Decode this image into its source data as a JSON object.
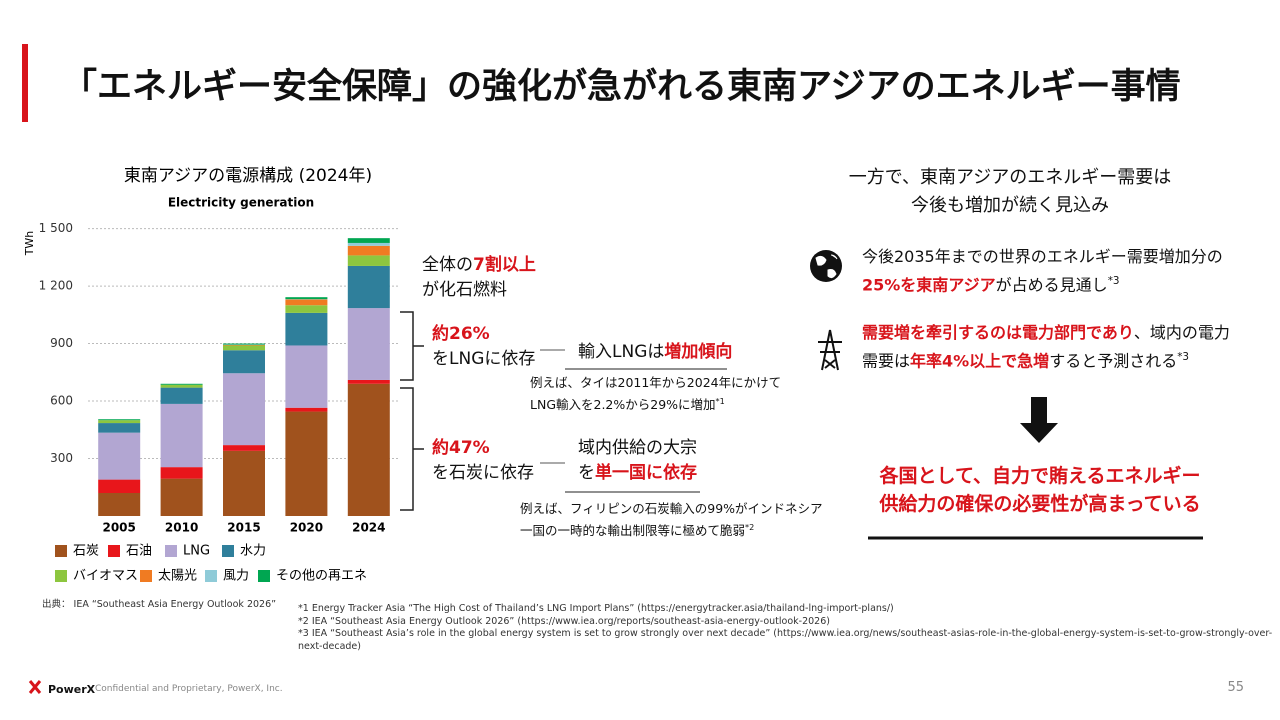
{
  "title": "「エネルギー安全保障」の強化が急がれる東南アジアのエネルギー事情",
  "chart_data": {
    "type": "stacked_bar",
    "title": "東南アジアの電源構成 (2024年)",
    "subtitle": "Electricity generation",
    "y_label": "TWh",
    "categories": [
      "2005",
      "2010",
      "2015",
      "2020",
      "2024"
    ],
    "series": [
      {
        "name": "石炭",
        "color": "#a0521d",
        "values": [
          120,
          195,
          340,
          545,
          690
        ]
      },
      {
        "name": "石油",
        "color": "#e8161b",
        "values": [
          70,
          60,
          30,
          20,
          20
        ]
      },
      {
        "name": "LNG",
        "color": "#b2a6d2",
        "values": [
          245,
          330,
          375,
          325,
          375
        ]
      },
      {
        "name": "水力",
        "color": "#2f7f9b",
        "values": [
          50,
          85,
          120,
          170,
          220
        ]
      },
      {
        "name": "バイオマス",
        "color": "#8dc63f",
        "values": [
          15,
          15,
          25,
          40,
          55
        ]
      },
      {
        "name": "太陽光",
        "color": "#f07b22",
        "values": [
          0,
          0,
          3,
          30,
          50
        ]
      },
      {
        "name": "風力",
        "color": "#8fcbd8",
        "values": [
          0,
          0,
          2,
          2,
          15
        ]
      },
      {
        "name": "その他の再エネ",
        "color": "#00a651",
        "values": [
          5,
          5,
          5,
          10,
          25
        ]
      }
    ],
    "ylim": [
      0,
      1550
    ],
    "yticks": [
      300,
      600,
      900,
      {
        "value": 1200,
        "label": "1 200"
      },
      {
        "value": 1500,
        "label": "1 500"
      }
    ],
    "grid": true
  },
  "annotations": {
    "fossil": [
      [
        {
          "text": "全体の"
        },
        {
          "text": "7割以上",
          "emphasis": true
        }
      ],
      [
        {
          "text": "が化石燃料"
        }
      ]
    ],
    "lng_share": [
      [
        {
          "text": "約26%",
          "emphasis": true
        }
      ],
      [
        {
          "text": "をLNGに依存"
        }
      ]
    ],
    "lng_heading": [
      [
        {
          "text": "輸入LNGは"
        },
        {
          "text": "増加傾向",
          "emphasis": true
        }
      ]
    ],
    "lng_note": [
      [
        {
          "text": "例えば、タイは2011年から2024年にかけて"
        }
      ],
      [
        {
          "text": "LNG輸入を2.2%から29%に増加"
        },
        {
          "text": "*1",
          "sup": true
        }
      ]
    ],
    "coal_share": [
      [
        {
          "text": "約47%",
          "emphasis": true
        }
      ],
      [
        {
          "text": "を石炭に依存"
        }
      ]
    ],
    "coal_heading": [
      [
        {
          "text": "域内供給の大宗"
        }
      ],
      [
        {
          "text": "を"
        },
        {
          "text": "単一国に依存",
          "emphasis": true
        }
      ]
    ],
    "coal_note": [
      [
        {
          "text": "例えば、フィリピンの石炭輸入の99%がインドネシア"
        }
      ],
      [
        {
          "text": "一国の一時的な輸出制限等に極めて脆弱"
        },
        {
          "text": "*2",
          "sup": true
        }
      ]
    ]
  },
  "right": {
    "heading": [
      [
        {
          "text": "一方で、東南アジアのエネルギー需要は"
        }
      ],
      [
        {
          "text": "今後も増加が続く見込み"
        }
      ]
    ],
    "item1": [
      [
        {
          "text": "今後2035年までの世界のエネルギー需要増加分の"
        }
      ],
      [
        {
          "text": "25%を東南アジア",
          "emphasis": true
        },
        {
          "text": "が占める見通し"
        },
        {
          "text": "*3",
          "sup": true
        }
      ]
    ],
    "item2": [
      [
        {
          "text": "需要増を牽引するのは電力部門であり",
          "emphasis": true
        },
        {
          "text": "、域内の電力"
        }
      ],
      [
        {
          "text": "需要は"
        },
        {
          "text": "年率4%以上で急増",
          "emphasis": true
        },
        {
          "text": "すると予測される"
        },
        {
          "text": "*3",
          "sup": true
        }
      ]
    ],
    "conclusion": [
      [
        {
          "text": "各国として、自力で賄えるエネルギー"
        }
      ],
      [
        {
          "text": "供給力の確保の必要性が高まっている"
        }
      ]
    ]
  },
  "source": "出典： IEA “Southeast Asia Energy Outlook 2026”",
  "footnotes": [
    "*1 Energy Tracker Asia “The High Cost of Thailand’s LNG Import Plans” (https://energytracker.asia/thailand-lng-import-plans/)",
    "*2 IEA “Southeast Asia Energy Outlook 2026” (https://www.iea.org/reports/southeast-asia-energy-outlook-2026)",
    "*3 IEA “Southeast Asia’s role in the global energy system is set to grow strongly over next decade” (https://www.iea.org/news/southeast-asias-role-in-the-global-energy-system-is-set-to-grow-strongly-over-next-decade)"
  ],
  "footer": {
    "logo": "PowerX",
    "confidential": "Confidential and Proprietary, PowerX, Inc.",
    "page": 55
  }
}
